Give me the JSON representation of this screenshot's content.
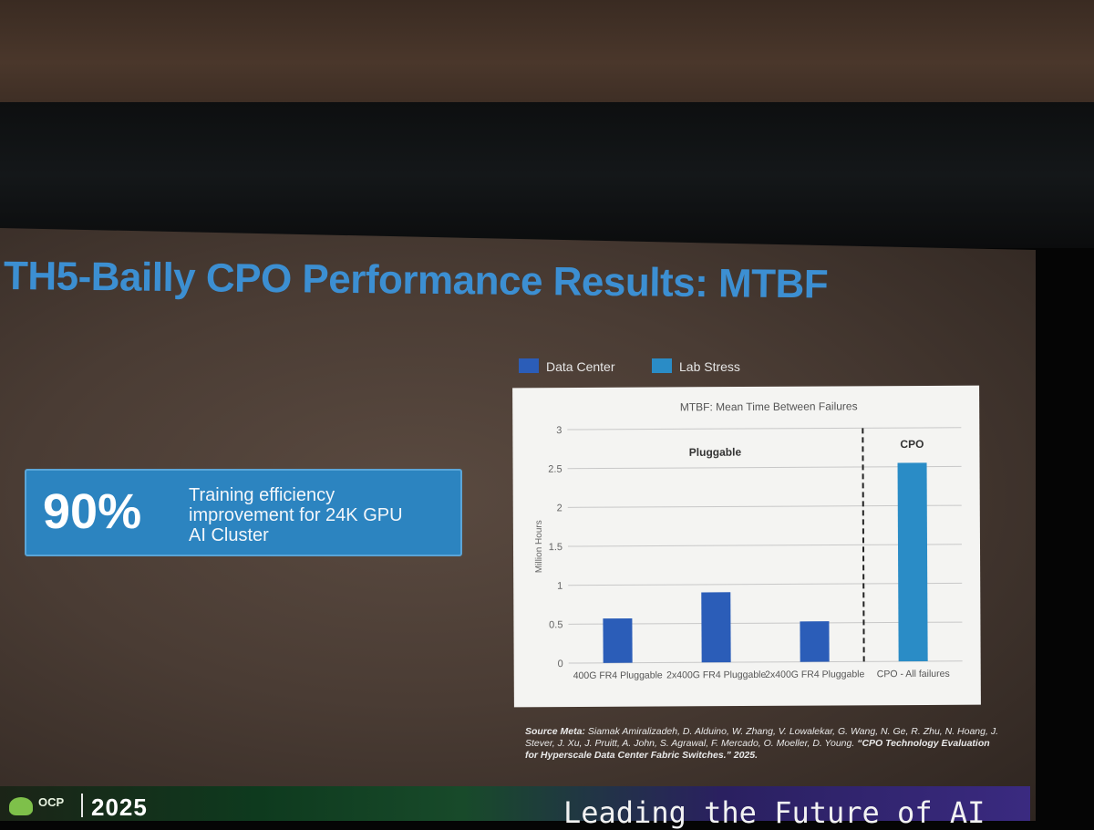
{
  "slide": {
    "title": "TH5-Bailly CPO Performance Results: MTBF",
    "stat": {
      "value": "90%",
      "label": "Training efficiency improvement for 24K GPU AI Cluster"
    },
    "source": {
      "label": "Source Meta:",
      "authors": "Siamak Amiralizadeh, D. Alduino, W. Zhang, V. Lowalekar, G. Wang, N. Ge, R. Zhu, N. Hoang, J. Stever, J. Xu, J. Pruitt, A. John, S. Agrawal, F. Mercado, O. Moeller, D. Young.",
      "citation": "“CPO Technology Evaluation for Hyperscale Data Center Fabric Switches.” 2025."
    }
  },
  "footer": {
    "org": "OCP",
    "year": "2025",
    "tagline": "Leading the Future of AI"
  },
  "colors": {
    "data_center": "#2b5db8",
    "lab_stress": "#2a8cc6",
    "title_blue": "#3c8fd2",
    "stat_box": "#2c84c0"
  },
  "chart_data": {
    "type": "bar",
    "title": "MTBF: Mean Time Between Failures",
    "ylabel": "Million Hours",
    "xlabel": "",
    "ylim": [
      0,
      3
    ],
    "yticks": [
      "0",
      "0.5",
      "1",
      "1.5",
      "2",
      "2.5",
      "3"
    ],
    "categories": [
      "400G FR4 Pluggable",
      "2x400G FR4 Pluggable",
      "2x400G FR4 Pluggable",
      "CPO - All failures"
    ],
    "series": [
      {
        "name": "Data Center",
        "color": "#2b5db8",
        "values": [
          0.57,
          0.9,
          0.52,
          null
        ]
      },
      {
        "name": "Lab Stress",
        "color": "#2a8cc6",
        "values": [
          null,
          null,
          null,
          2.55
        ]
      }
    ],
    "annotations": [
      "Pluggable",
      "CPO"
    ],
    "divider_after_category": 2,
    "grid": true,
    "legend": "top-left, outside"
  }
}
